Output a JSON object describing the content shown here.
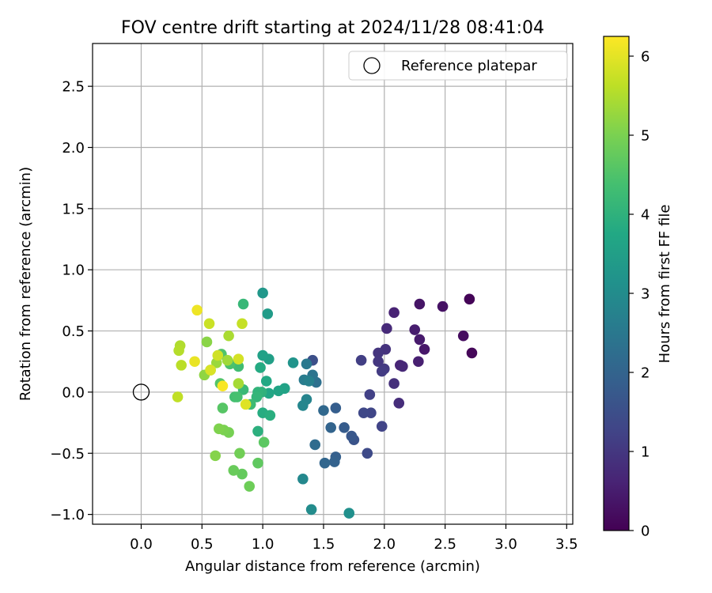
{
  "chart_data": {
    "type": "scatter",
    "title": "FOV centre drift starting at 2024/11/28 08:41:04",
    "xlabel": "Angular distance from reference (arcmin)",
    "ylabel": "Rotation from reference (arcmin)",
    "xlim": [
      -0.4,
      3.55
    ],
    "ylim": [
      -1.08,
      2.85
    ],
    "xticks": [
      "0.0",
      "0.5",
      "1.0",
      "1.5",
      "2.0",
      "2.5",
      "3.0",
      "3.5"
    ],
    "xtick_values": [
      0,
      0.5,
      1.0,
      1.5,
      2.0,
      2.5,
      3.0,
      3.5
    ],
    "yticks": [
      "−1.0",
      "−0.5",
      "0.0",
      "0.5",
      "1.0",
      "1.5",
      "2.0",
      "2.5"
    ],
    "ytick_values": [
      -1.0,
      -0.5,
      0,
      0.5,
      1.0,
      1.5,
      2.0,
      2.5
    ],
    "grid": true,
    "legend": {
      "position": "top-right",
      "entries": [
        "Reference platepar"
      ]
    },
    "reference": {
      "x": 0,
      "y": 0
    },
    "colorbar": {
      "label": "Hours from first FF file",
      "range": [
        0,
        6.25
      ],
      "ticks": [
        "0",
        "1",
        "2",
        "3",
        "4",
        "5",
        "6"
      ],
      "tick_values": [
        0,
        1,
        2,
        3,
        4,
        5,
        6
      ],
      "colormap": "viridis"
    },
    "points": [
      {
        "x": 2.7,
        "y": 0.76,
        "h": 0.05
      },
      {
        "x": 2.72,
        "y": 0.32,
        "h": 0.1
      },
      {
        "x": 2.65,
        "y": 0.46,
        "h": 0.2
      },
      {
        "x": 2.48,
        "y": 0.7,
        "h": 0.3
      },
      {
        "x": 2.29,
        "y": 0.72,
        "h": 0.35
      },
      {
        "x": 2.33,
        "y": 0.35,
        "h": 0.4
      },
      {
        "x": 2.29,
        "y": 0.43,
        "h": 0.45
      },
      {
        "x": 2.25,
        "y": 0.51,
        "h": 0.5
      },
      {
        "x": 2.28,
        "y": 0.25,
        "h": 0.55
      },
      {
        "x": 2.08,
        "y": 0.65,
        "h": 0.6
      },
      {
        "x": 2.13,
        "y": 0.22,
        "h": 0.65
      },
      {
        "x": 2.15,
        "y": 0.21,
        "h": 0.7
      },
      {
        "x": 2.02,
        "y": 0.52,
        "h": 0.75
      },
      {
        "x": 2.12,
        "y": -0.09,
        "h": 0.8
      },
      {
        "x": 2.08,
        "y": 0.07,
        "h": 0.85
      },
      {
        "x": 2.01,
        "y": 0.35,
        "h": 0.9
      },
      {
        "x": 1.95,
        "y": 0.32,
        "h": 0.95
      },
      {
        "x": 1.95,
        "y": 0.25,
        "h": 1.0
      },
      {
        "x": 2.0,
        "y": 0.19,
        "h": 1.05
      },
      {
        "x": 1.98,
        "y": 0.17,
        "h": 1.1
      },
      {
        "x": 1.81,
        "y": 0.26,
        "h": 1.15
      },
      {
        "x": 1.88,
        "y": -0.02,
        "h": 1.2
      },
      {
        "x": 1.98,
        "y": -0.28,
        "h": 1.25
      },
      {
        "x": 1.89,
        "y": -0.17,
        "h": 1.3
      },
      {
        "x": 1.83,
        "y": -0.17,
        "h": 1.35
      },
      {
        "x": 1.86,
        "y": -0.5,
        "h": 1.4
      },
      {
        "x": 1.41,
        "y": 0.26,
        "h": 1.5
      },
      {
        "x": 1.75,
        "y": -0.39,
        "h": 1.6
      },
      {
        "x": 1.73,
        "y": -0.36,
        "h": 1.7
      },
      {
        "x": 1.67,
        "y": -0.29,
        "h": 1.8
      },
      {
        "x": 1.6,
        "y": -0.13,
        "h": 1.85
      },
      {
        "x": 1.6,
        "y": -0.53,
        "h": 1.9
      },
      {
        "x": 1.59,
        "y": -0.57,
        "h": 1.95
      },
      {
        "x": 1.56,
        "y": -0.29,
        "h": 2.0
      },
      {
        "x": 1.51,
        "y": -0.58,
        "h": 2.05
      },
      {
        "x": 1.5,
        "y": -0.15,
        "h": 2.1
      },
      {
        "x": 1.43,
        "y": -0.43,
        "h": 2.2
      },
      {
        "x": 1.44,
        "y": 0.08,
        "h": 2.3
      },
      {
        "x": 1.41,
        "y": 0.14,
        "h": 2.4
      },
      {
        "x": 1.36,
        "y": 0.23,
        "h": 2.5
      },
      {
        "x": 1.34,
        "y": 0.1,
        "h": 2.6
      },
      {
        "x": 1.38,
        "y": 0.09,
        "h": 2.7
      },
      {
        "x": 1.36,
        "y": -0.06,
        "h": 2.8
      },
      {
        "x": 1.33,
        "y": -0.11,
        "h": 2.85
      },
      {
        "x": 1.33,
        "y": -0.71,
        "h": 2.9
      },
      {
        "x": 1.4,
        "y": -0.96,
        "h": 3.0
      },
      {
        "x": 1.71,
        "y": -0.99,
        "h": 3.1
      },
      {
        "x": 1.25,
        "y": 0.24,
        "h": 3.2
      },
      {
        "x": 1.0,
        "y": 0.81,
        "h": 3.3
      },
      {
        "x": 1.04,
        "y": 0.64,
        "h": 3.4
      },
      {
        "x": 1.05,
        "y": 0.27,
        "h": 3.5
      },
      {
        "x": 1.0,
        "y": 0.3,
        "h": 3.55
      },
      {
        "x": 1.18,
        "y": 0.03,
        "h": 3.6
      },
      {
        "x": 1.13,
        "y": 0.01,
        "h": 3.65
      },
      {
        "x": 1.05,
        "y": -0.01,
        "h": 3.7
      },
      {
        "x": 1.03,
        "y": 0.09,
        "h": 3.75
      },
      {
        "x": 0.98,
        "y": 0.2,
        "h": 3.8
      },
      {
        "x": 1.0,
        "y": -0.17,
        "h": 3.85
      },
      {
        "x": 1.06,
        "y": -0.19,
        "h": 3.9
      },
      {
        "x": 0.96,
        "y": -0.32,
        "h": 3.95
      },
      {
        "x": 0.99,
        "y": 0.0,
        "h": 4.0
      },
      {
        "x": 0.96,
        "y": 0.0,
        "h": 4.05
      },
      {
        "x": 0.95,
        "y": -0.04,
        "h": 4.1
      },
      {
        "x": 0.84,
        "y": 0.72,
        "h": 4.15
      },
      {
        "x": 0.84,
        "y": 0.02,
        "h": 4.2
      },
      {
        "x": 0.9,
        "y": -0.1,
        "h": 4.25
      },
      {
        "x": 0.8,
        "y": 0.21,
        "h": 4.3
      },
      {
        "x": 0.77,
        "y": -0.04,
        "h": 4.35
      },
      {
        "x": 0.79,
        "y": -0.04,
        "h": 4.4
      },
      {
        "x": 0.73,
        "y": 0.23,
        "h": 4.45
      },
      {
        "x": 0.66,
        "y": 0.31,
        "h": 4.5
      },
      {
        "x": 0.65,
        "y": 0.07,
        "h": 4.55
      },
      {
        "x": 0.67,
        "y": -0.13,
        "h": 4.6
      },
      {
        "x": 1.01,
        "y": -0.41,
        "h": 4.65
      },
      {
        "x": 0.96,
        "y": -0.58,
        "h": 4.7
      },
      {
        "x": 0.83,
        "y": -0.67,
        "h": 4.75
      },
      {
        "x": 0.76,
        "y": -0.64,
        "h": 4.8
      },
      {
        "x": 0.89,
        "y": -0.77,
        "h": 4.85
      },
      {
        "x": 0.81,
        "y": -0.5,
        "h": 4.9
      },
      {
        "x": 0.72,
        "y": -0.33,
        "h": 4.95
      },
      {
        "x": 0.68,
        "y": -0.31,
        "h": 5.0
      },
      {
        "x": 0.64,
        "y": -0.3,
        "h": 5.05
      },
      {
        "x": 0.61,
        "y": -0.52,
        "h": 5.1
      },
      {
        "x": 0.54,
        "y": 0.41,
        "h": 5.15
      },
      {
        "x": 0.52,
        "y": 0.14,
        "h": 5.2
      },
      {
        "x": 0.57,
        "y": 0.18,
        "h": 5.25
      },
      {
        "x": 0.62,
        "y": 0.24,
        "h": 5.3
      },
      {
        "x": 0.71,
        "y": 0.26,
        "h": 5.35
      },
      {
        "x": 0.8,
        "y": 0.07,
        "h": 5.4
      },
      {
        "x": 0.72,
        "y": 0.46,
        "h": 5.45
      },
      {
        "x": 0.32,
        "y": 0.38,
        "h": 5.5
      },
      {
        "x": 0.31,
        "y": 0.34,
        "h": 5.55
      },
      {
        "x": 0.33,
        "y": 0.22,
        "h": 5.6
      },
      {
        "x": 0.3,
        "y": -0.04,
        "h": 5.65
      },
      {
        "x": 0.83,
        "y": 0.56,
        "h": 5.7
      },
      {
        "x": 0.56,
        "y": 0.56,
        "h": 5.75
      },
      {
        "x": 0.63,
        "y": 0.3,
        "h": 5.8
      },
      {
        "x": 0.8,
        "y": 0.27,
        "h": 5.85
      },
      {
        "x": 0.57,
        "y": 0.18,
        "h": 5.9
      },
      {
        "x": 0.86,
        "y": -0.1,
        "h": 5.95
      },
      {
        "x": 0.44,
        "y": 0.25,
        "h": 6.05
      },
      {
        "x": 0.46,
        "y": 0.67,
        "h": 6.1
      },
      {
        "x": 0.67,
        "y": 0.05,
        "h": 6.2
      }
    ]
  }
}
